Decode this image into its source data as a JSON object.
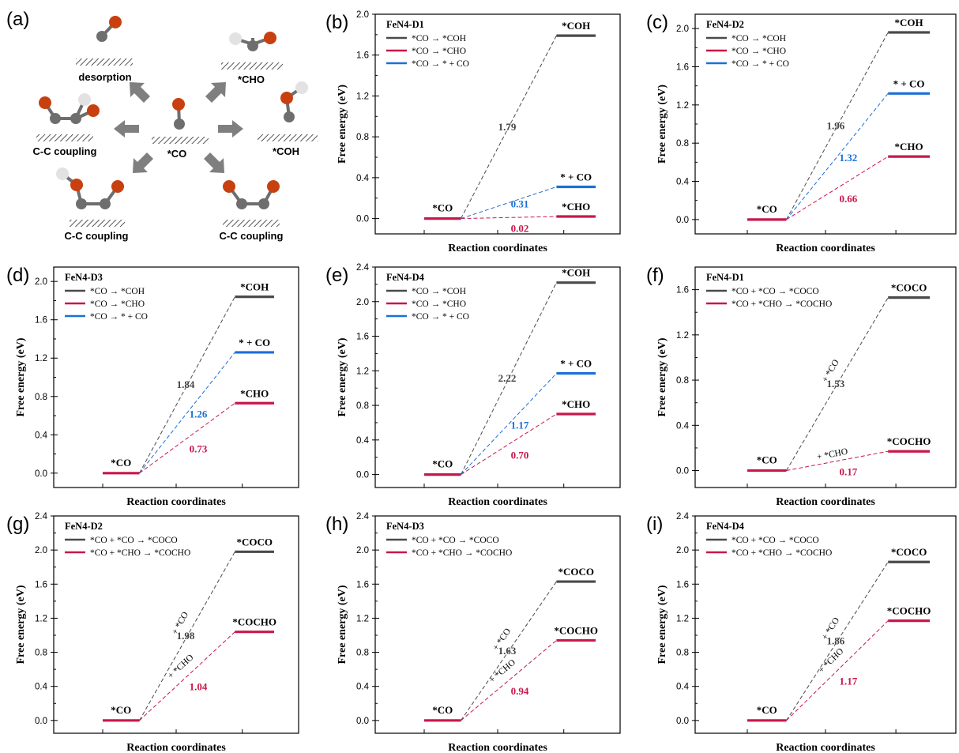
{
  "colors": {
    "black": "#4a4a4a",
    "red": "#c8174a",
    "blue": "#1c6fd6",
    "oxygen": "#c8400f",
    "carbon": "#6e6e6e",
    "hydrogen": "#e2e2e2"
  },
  "scheme": {
    "letter": "(a)",
    "center_label": "*CO",
    "labels": {
      "desorption": "desorption",
      "cho": "*CHO",
      "coh": "*COH",
      "cc_left": "C-C coupling",
      "cc_bottom_left": "C-C coupling",
      "cc_bottom_right": "C-C coupling"
    }
  },
  "chart_data": [
    {
      "letter": "(b)",
      "type": "line",
      "title": "FeN4-D1",
      "xlabel": "Reaction coordinates",
      "ylabel": "Free energy (eV)",
      "ylim": [
        -0.15,
        2.0
      ],
      "yticks": [
        "0.0",
        "0.4",
        "0.8",
        "1.2",
        "1.6",
        "2.0"
      ],
      "initial": {
        "label": "*CO",
        "value": 0.0
      },
      "series": [
        {
          "legend": "*CO → *COH",
          "color": "black",
          "final_label": "*COH",
          "final": 1.79,
          "barrier_label": "1.79"
        },
        {
          "legend": "*CO → *CHO",
          "color": "red",
          "final_label": "*CHO",
          "final": 0.02,
          "barrier_label": "0.02"
        },
        {
          "legend": "*CO → * + CO",
          "color": "blue",
          "final_label": "* + CO",
          "final": 0.31,
          "barrier_label": "0.31"
        }
      ]
    },
    {
      "letter": "(c)",
      "type": "line",
      "title": "FeN4-D2",
      "xlabel": "Reaction coordinates",
      "ylabel": "Free energy (eV)",
      "ylim": [
        -0.15,
        2.15
      ],
      "yticks": [
        "0.0",
        "0.4",
        "0.8",
        "1.2",
        "1.6",
        "2.0"
      ],
      "initial": {
        "label": "*CO",
        "value": 0.0
      },
      "series": [
        {
          "legend": "*CO → *COH",
          "color": "black",
          "final_label": "*COH",
          "final": 1.96,
          "barrier_label": "1.96"
        },
        {
          "legend": "*CO → *CHO",
          "color": "red",
          "final_label": "*CHO",
          "final": 0.66,
          "barrier_label": "0.66"
        },
        {
          "legend": "*CO → * + CO",
          "color": "blue",
          "final_label": "* + CO",
          "final": 1.32,
          "barrier_label": "1.32"
        }
      ]
    },
    {
      "letter": "(d)",
      "type": "line",
      "title": "FeN4-D3",
      "xlabel": "Reaction coordinates",
      "ylabel": "Free energy (eV)",
      "ylim": [
        -0.15,
        2.15
      ],
      "yticks": [
        "0.0",
        "0.4",
        "0.8",
        "1.2",
        "1.6",
        "2.0"
      ],
      "initial": {
        "label": "*CO",
        "value": 0.0
      },
      "series": [
        {
          "legend": "*CO → *COH",
          "color": "black",
          "final_label": "*COH",
          "final": 1.84,
          "barrier_label": "1.84"
        },
        {
          "legend": "*CO → *CHO",
          "color": "red",
          "final_label": "*CHO",
          "final": 0.73,
          "barrier_label": "0.73"
        },
        {
          "legend": "*CO → * + CO",
          "color": "blue",
          "final_label": "* + CO",
          "final": 1.26,
          "barrier_label": "1.26"
        }
      ]
    },
    {
      "letter": "(e)",
      "type": "line",
      "title": "FeN4-D4",
      "xlabel": "Reaction coordinates",
      "ylabel": "Free energy (eV)",
      "ylim": [
        -0.15,
        2.4
      ],
      "yticks": [
        "0.0",
        "0.4",
        "0.8",
        "1.2",
        "1.6",
        "2.0",
        "2.4"
      ],
      "initial": {
        "label": "*CO",
        "value": 0.0
      },
      "series": [
        {
          "legend": "*CO → *COH",
          "color": "black",
          "final_label": "*COH",
          "final": 2.22,
          "barrier_label": "2.22"
        },
        {
          "legend": "*CO → *CHO",
          "color": "red",
          "final_label": "*CHO",
          "final": 0.7,
          "barrier_label": "0.70"
        },
        {
          "legend": "*CO → * + CO",
          "color": "blue",
          "final_label": "* + CO",
          "final": 1.17,
          "barrier_label": "1.17"
        }
      ]
    },
    {
      "letter": "(f)",
      "type": "line",
      "title": "FeN4-D1",
      "xlabel": "Reaction coordinates",
      "ylabel": "Free energy (eV)",
      "ylim": [
        -0.15,
        1.8
      ],
      "yticks": [
        "0.0",
        "0.4",
        "0.8",
        "1.2",
        "1.6"
      ],
      "initial": {
        "label": "*CO",
        "value": 0.0
      },
      "series": [
        {
          "legend": "*CO + *CO → *COCO",
          "color": "black",
          "final_label": "*COCO",
          "final": 1.53,
          "barrier_label": "1.53",
          "path_label": "+ *CO"
        },
        {
          "legend": "*CO + *CHO → *COCHO",
          "color": "red",
          "final_label": "*COCHO",
          "final": 0.17,
          "barrier_label": "0.17",
          "path_label": "+ *CHO"
        }
      ]
    },
    {
      "letter": "(g)",
      "type": "line",
      "title": "FeN4-D2",
      "xlabel": "Reaction coordinates",
      "ylabel": "Free energy (eV)",
      "ylim": [
        -0.15,
        2.4
      ],
      "yticks": [
        "0.0",
        "0.4",
        "0.8",
        "1.2",
        "1.6",
        "2.0",
        "2.4"
      ],
      "initial": {
        "label": "*CO",
        "value": 0.0
      },
      "series": [
        {
          "legend": "*CO + *CO → *COCO",
          "color": "black",
          "final_label": "*COCO",
          "final": 1.98,
          "barrier_label": "1.98",
          "path_label": "+ *CO"
        },
        {
          "legend": "*CO + *CHO → *COCHO",
          "color": "red",
          "final_label": "*COCHO",
          "final": 1.04,
          "barrier_label": "1.04",
          "path_label": "+ *CHO"
        }
      ]
    },
    {
      "letter": "(h)",
      "type": "line",
      "title": "FeN4-D3",
      "xlabel": "Reaction coordinates",
      "ylabel": "Free energy (eV)",
      "ylim": [
        -0.15,
        2.4
      ],
      "yticks": [
        "0.0",
        "0.4",
        "0.8",
        "1.2",
        "1.6",
        "2.0",
        "2.4"
      ],
      "initial": {
        "label": "*CO",
        "value": 0.0
      },
      "series": [
        {
          "legend": "*CO + *CO → *COCO",
          "color": "black",
          "final_label": "*COCO",
          "final": 1.63,
          "barrier_label": "1.63",
          "path_label": "+ *CO"
        },
        {
          "legend": "*CO + *CHO → *COCHO",
          "color": "red",
          "final_label": "*COCHO",
          "final": 0.94,
          "barrier_label": "0.94",
          "path_label": "+ *CHO"
        }
      ]
    },
    {
      "letter": "(i)",
      "type": "line",
      "title": "FeN4-D4",
      "xlabel": "Reaction coordinates",
      "ylabel": "Free energy (eV)",
      "ylim": [
        -0.15,
        2.4
      ],
      "yticks": [
        "0.0",
        "0.4",
        "0.8",
        "1.2",
        "1.6",
        "2.0",
        "2.4"
      ],
      "initial": {
        "label": "*CO",
        "value": 0.0
      },
      "series": [
        {
          "legend": "*CO + *CO → *COCO",
          "color": "black",
          "final_label": "*COCO",
          "final": 1.86,
          "barrier_label": "1.86",
          "path_label": "+ *CO"
        },
        {
          "legend": "*CO + *CHO → *COCHO",
          "color": "red",
          "final_label": "*COCHO",
          "final": 1.17,
          "barrier_label": "1.17",
          "path_label": "+ *CHO"
        }
      ]
    }
  ]
}
